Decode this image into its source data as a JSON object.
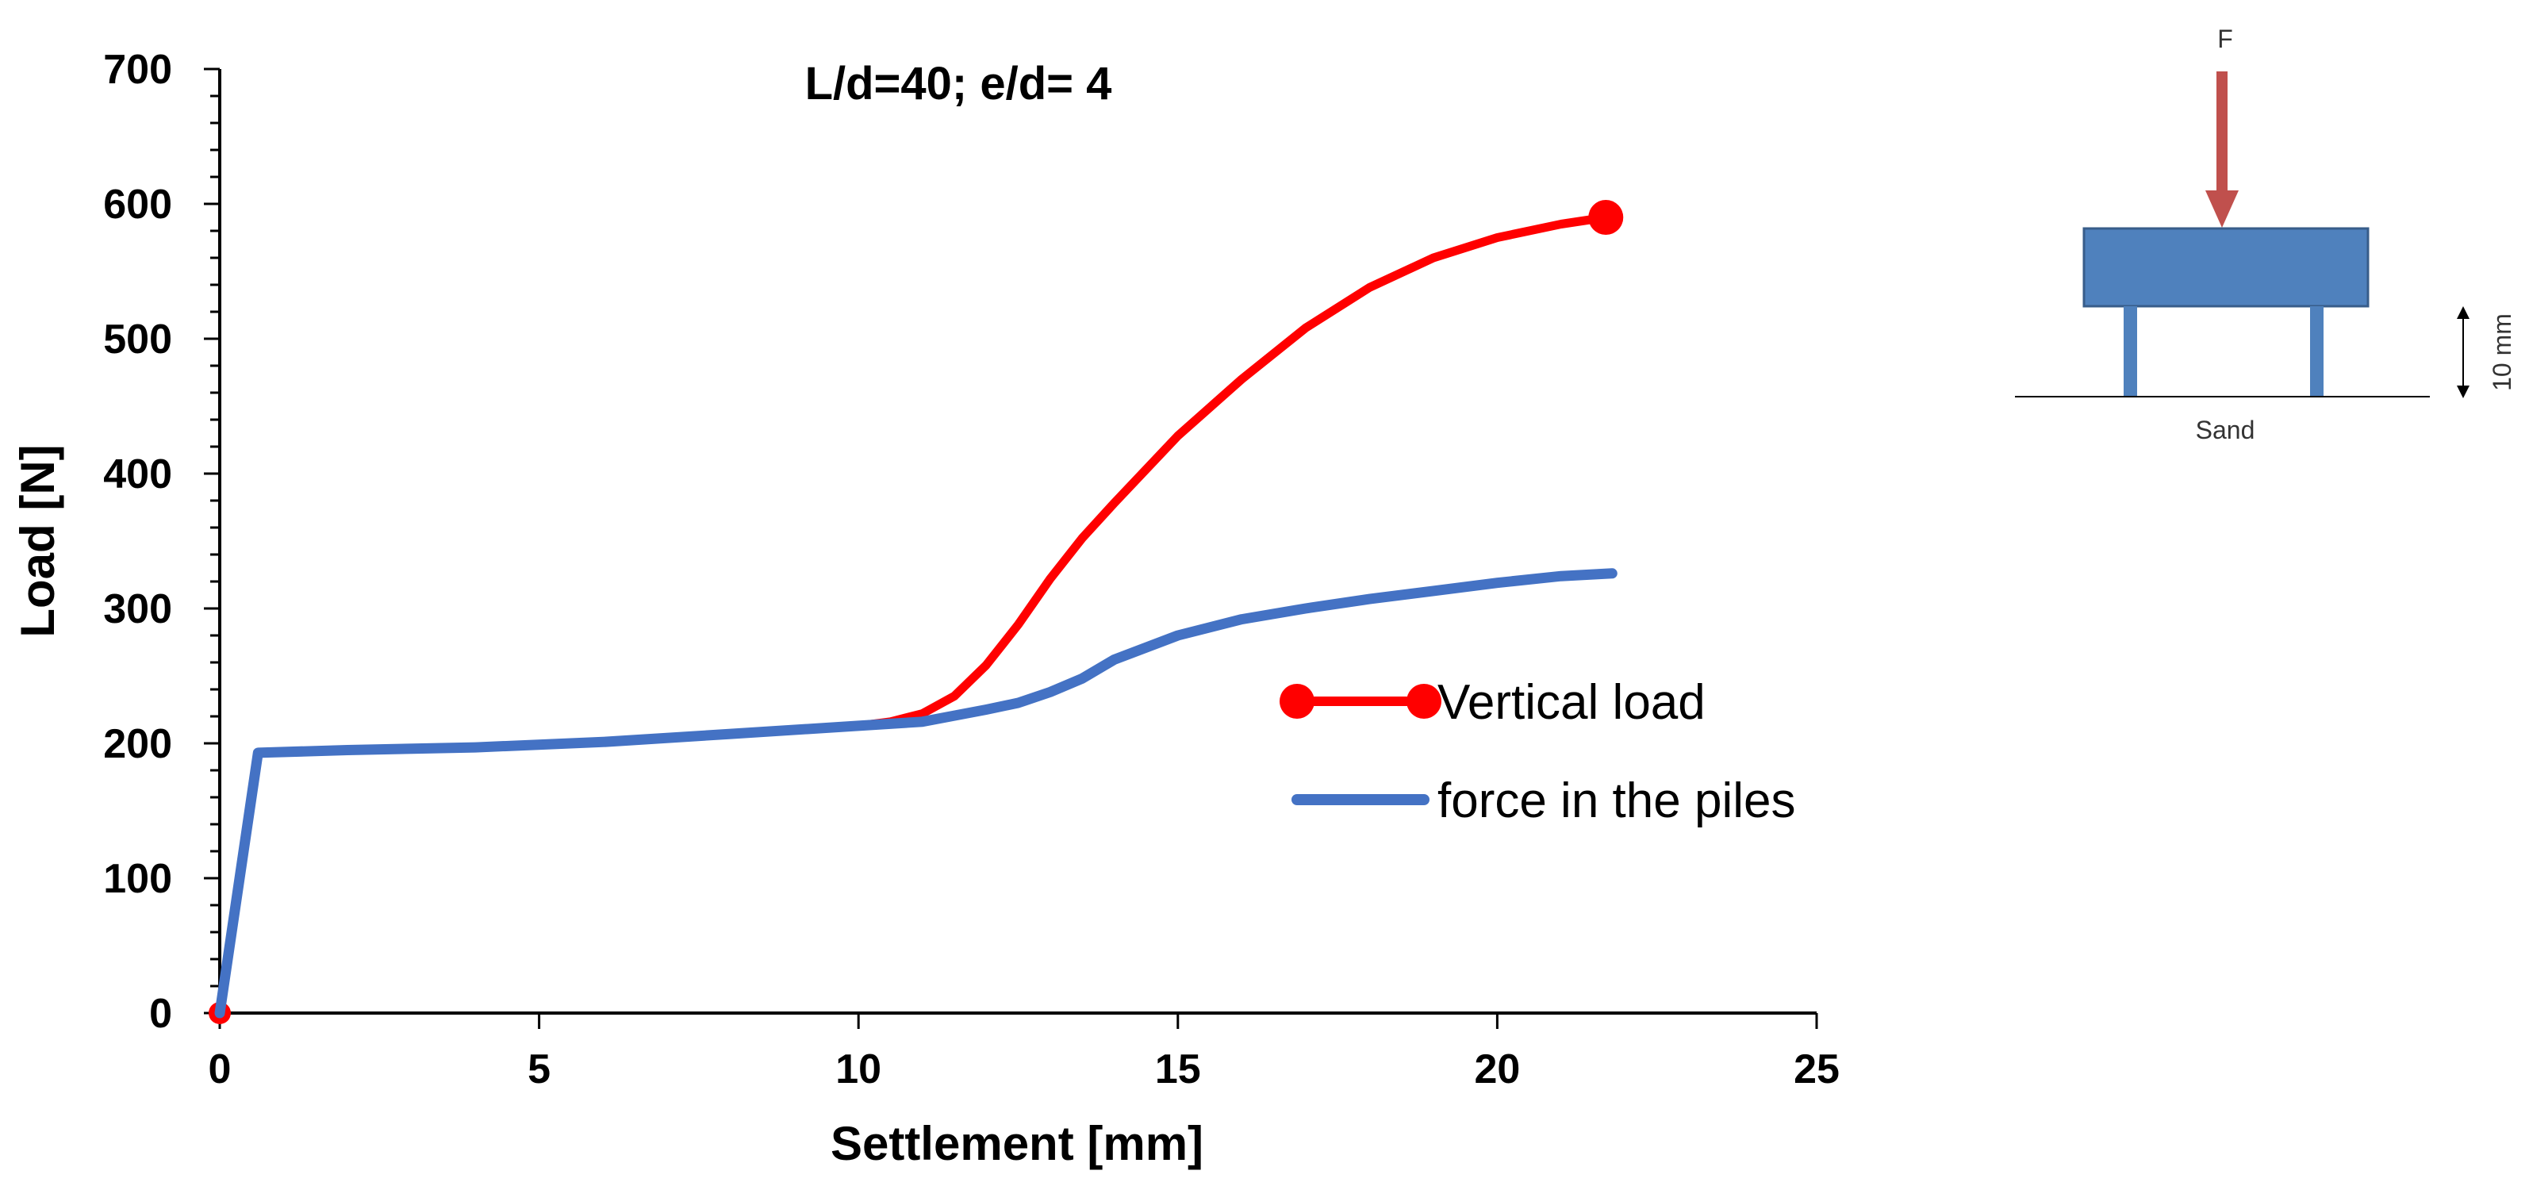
{
  "chart_data": {
    "type": "line",
    "title": "L/d=40; e/d= 4",
    "xlabel": "Settlement [mm]",
    "ylabel": "Load [N]",
    "xlim": [
      0,
      25
    ],
    "ylim": [
      0,
      700
    ],
    "xticks": [
      "0",
      "5",
      "10",
      "15",
      "20",
      "25"
    ],
    "yticks": [
      "0",
      "100",
      "200",
      "300",
      "400",
      "500",
      "600",
      "700"
    ],
    "grid": false,
    "legend_position": "center-right",
    "series": [
      {
        "name": "Vertical load",
        "color": "#ff0000",
        "marker": "circle-at-ends",
        "x": [
          0,
          0.6,
          2,
          4,
          6,
          8,
          10,
          10.5,
          11,
          11.5,
          12,
          12.5,
          13,
          13.5,
          14,
          15,
          16,
          17,
          18,
          19,
          20,
          21,
          21.7
        ],
        "y": [
          0,
          193,
          195,
          197,
          201,
          207,
          213,
          216,
          222,
          235,
          258,
          288,
          322,
          352,
          378,
          428,
          470,
          508,
          538,
          560,
          575,
          585,
          590
        ]
      },
      {
        "name": "force in the piles",
        "color": "#4472c4",
        "marker": "none",
        "x": [
          0,
          0.6,
          2,
          4,
          6,
          8,
          10,
          11,
          12,
          12.5,
          13,
          13.5,
          14,
          15,
          16,
          17,
          18,
          19,
          20,
          21,
          21.8
        ],
        "y": [
          0,
          193,
          195,
          197,
          201,
          207,
          213,
          216,
          225,
          230,
          238,
          248,
          262,
          280,
          292,
          300,
          307,
          313,
          319,
          324,
          326
        ]
      }
    ]
  },
  "inset": {
    "force_label": "F",
    "dimension_label": "10 mm",
    "ground_label": "Sand",
    "force_color": "#c0504d",
    "cap_color": "#4f81bd"
  }
}
